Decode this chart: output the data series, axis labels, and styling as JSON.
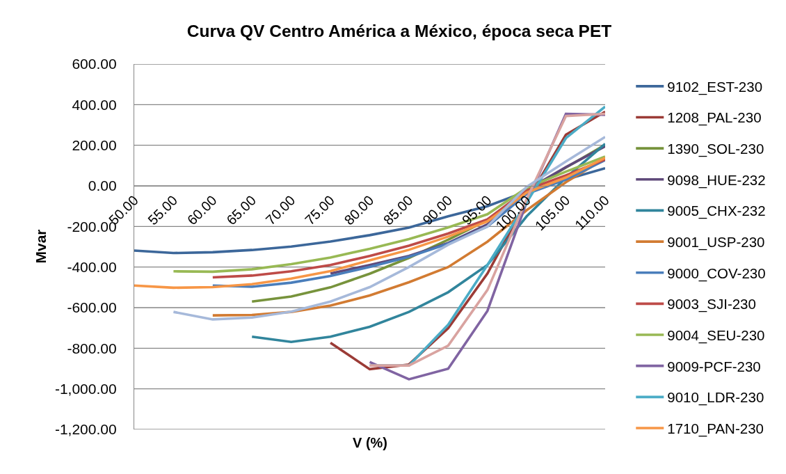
{
  "chart_data": {
    "type": "line",
    "title": "Curva QV Centro América a México, época seca PET",
    "xlabel": "V (%)",
    "ylabel": "Mvar",
    "categories": [
      "50.00",
      "55.00",
      "60.00",
      "65.00",
      "70.00",
      "75.00",
      "80.00",
      "85.00",
      "90.00",
      "95.00",
      "100.00",
      "105.00",
      "110.00"
    ],
    "ylim": [
      -1200,
      600
    ],
    "yticks": [
      {
        "value": -1200,
        "label": "-1,200.00"
      },
      {
        "value": -1000,
        "label": "-1,000.00"
      },
      {
        "value": -800,
        "label": "-800.00"
      },
      {
        "value": -600,
        "label": "-600.00"
      },
      {
        "value": -400,
        "label": "-400.00"
      },
      {
        "value": -200,
        "label": "-200.00"
      },
      {
        "value": 0,
        "label": "0.00"
      },
      {
        "value": 200,
        "label": "200.00"
      },
      {
        "value": 400,
        "label": "400.00"
      },
      {
        "value": 600,
        "label": "600.00"
      }
    ],
    "grid": "y",
    "legend": "right",
    "marker": "none",
    "line_style": "solid",
    "series": [
      {
        "name": "9102_EST-230",
        "color": "#3c679a",
        "values": [
          -319,
          -331,
          -327,
          -316,
          -299,
          -274,
          -243,
          -206,
          -150,
          -100,
          -27,
          31,
          87
        ]
      },
      {
        "name": "1208_PAL-230",
        "color": "#9b3b36",
        "values": [
          null,
          null,
          null,
          null,
          null,
          -773,
          -903,
          -880,
          -701,
          -432,
          -75,
          252,
          365
        ]
      },
      {
        "name": "1390_SOL-230",
        "color": "#77933c",
        "values": [
          null,
          null,
          null,
          -570,
          -545,
          -500,
          -433,
          -355,
          -265,
          -170,
          -25,
          90,
          202
        ]
      },
      {
        "name": "9098_HUE-232",
        "color": "#5f497a",
        "values": [
          null,
          null,
          null,
          null,
          null,
          -432,
          -390,
          -345,
          -282,
          -190,
          -20,
          92,
          195
        ]
      },
      {
        "name": "9005_CHX-232",
        "color": "#31859c",
        "values": [
          null,
          null,
          null,
          -743,
          -769,
          -743,
          -694,
          -621,
          -524,
          -390,
          -150,
          40,
          207
        ]
      },
      {
        "name": "9001_USP-230",
        "color": "#d27b32",
        "values": [
          null,
          null,
          -638,
          -636,
          -621,
          -590,
          -540,
          -475,
          -400,
          -275,
          -120,
          18,
          135
        ]
      },
      {
        "name": "9000_COV-230",
        "color": "#4a7ebb",
        "values": [
          null,
          null,
          -491,
          -497,
          -477,
          -444,
          -399,
          -350,
          -285,
          -200,
          -40,
          31,
          127
        ]
      },
      {
        "name": "9003_SJI-230",
        "color": "#be4b48",
        "values": [
          null,
          null,
          -451,
          -442,
          -421,
          -390,
          -345,
          -295,
          -235,
          -165,
          -20,
          52,
          130
        ]
      },
      {
        "name": "9004_SEU-230",
        "color": "#98b954",
        "values": [
          null,
          -421,
          -423,
          -411,
          -386,
          -353,
          -310,
          -262,
          -205,
          -140,
          -10,
          70,
          144
        ]
      },
      {
        "name": "9009-PCF-230",
        "color": "#8064a2",
        "values": [
          null,
          null,
          null,
          null,
          null,
          null,
          -868,
          -953,
          -901,
          -616,
          -80,
          355,
          350
        ]
      },
      {
        "name": "9010_LDR-230",
        "color": "#4bacc6",
        "values": [
          null,
          null,
          null,
          null,
          null,
          null,
          -885,
          -885,
          -684,
          -390,
          -82,
          235,
          390
        ]
      },
      {
        "name": "1710_PAN-230",
        "color": "#f79646",
        "values": [
          -491,
          -502,
          -499,
          -484,
          -457,
          -420,
          -367,
          -315,
          -250,
          -175,
          -33,
          41,
          138
        ]
      },
      {
        "color": "#d9a3a0",
        "values": [
          null,
          null,
          null,
          null,
          null,
          null,
          -885,
          -885,
          -787,
          -513,
          -65,
          344,
          355
        ]
      },
      {
        "color": "#a6b9da",
        "values": [
          null,
          -621,
          -658,
          -649,
          -620,
          -570,
          -499,
          -400,
          -290,
          -200,
          -5,
          120,
          241
        ]
      }
    ]
  }
}
